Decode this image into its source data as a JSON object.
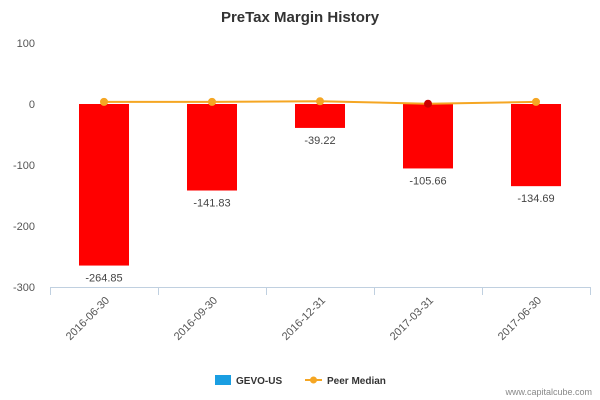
{
  "chart_data": {
    "type": "bar",
    "title": "PreTax Margin History",
    "categories": [
      "2016-06-30",
      "2016-09-30",
      "2016-12-31",
      "2017-03-31",
      "2017-06-30"
    ],
    "series": [
      {
        "name": "GEVO-US",
        "type": "bar",
        "values": [
          -264.85,
          -141.83,
          -39.22,
          -105.66,
          -134.69
        ],
        "data_labels": [
          "-264.85",
          "-141.83",
          "-39.22",
          "-105.66",
          "-134.69"
        ],
        "bar_color": "#ff0000",
        "legend_color": "#1a9ee2"
      },
      {
        "name": "Peer Median",
        "type": "line",
        "values": [
          3.5,
          3.5,
          4.5,
          0.5,
          3.5
        ],
        "color": "#f5a623",
        "highlight_color": "#cc0000",
        "highlight_index": 3
      }
    ],
    "ylim": [
      -300,
      100
    ],
    "yticks": [
      100,
      0,
      -100,
      -200,
      -300
    ],
    "xlabel": "",
    "ylabel": "",
    "legend": "bottom-center",
    "grid": false
  },
  "credit": "www.capitalcube.com"
}
